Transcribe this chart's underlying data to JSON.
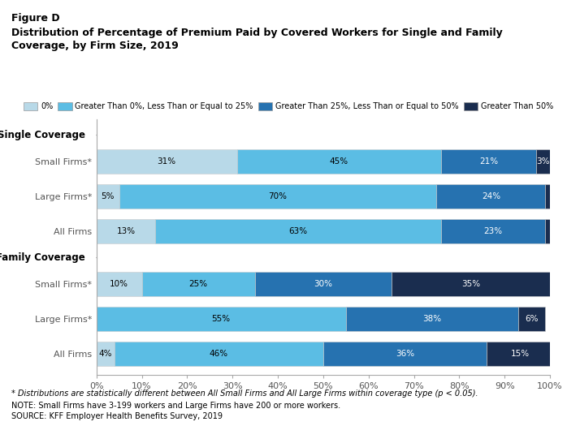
{
  "title_line1": "Figure D",
  "title_line2": "Distribution of Percentage of Premium Paid by Covered Workers for Single and Family",
  "title_line3": "Coverage, by Firm Size, 2019",
  "legend_labels": [
    "0%",
    "Greater Than 0%, Less Than or Equal to 25%",
    "Greater Than 25%, Less Than or Equal to 50%",
    "Greater Than 50%"
  ],
  "colors": [
    "#b8d9e8",
    "#5bbde4",
    "#2672b0",
    "#1a2d4f"
  ],
  "section_labels": [
    "Single Coverage",
    "Family Coverage"
  ],
  "categories": [
    "Small Firms*",
    "Large Firms*",
    "All Firms",
    "Small Firms*",
    "Large Firms*",
    "All Firms"
  ],
  "data": [
    [
      31,
      45,
      21,
      3
    ],
    [
      5,
      70,
      24,
      1
    ],
    [
      13,
      63,
      23,
      1
    ],
    [
      10,
      25,
      30,
      35
    ],
    [
      0,
      55,
      38,
      6
    ],
    [
      4,
      46,
      36,
      15
    ]
  ],
  "bar_labels": [
    [
      "31%",
      "45%",
      "21%",
      "3%"
    ],
    [
      "5%",
      "70%",
      "24%",
      ""
    ],
    [
      "13%",
      "63%",
      "23%",
      ""
    ],
    [
      "10%",
      "25%",
      "30%",
      "35%"
    ],
    [
      "",
      "55%",
      "38%",
      "6%"
    ],
    [
      "4%",
      "46%",
      "36%",
      "15%"
    ]
  ],
  "label_colors": [
    [
      "black",
      "black",
      "white",
      "white"
    ],
    [
      "black",
      "black",
      "white",
      "white"
    ],
    [
      "black",
      "black",
      "white",
      "white"
    ],
    [
      "black",
      "black",
      "white",
      "white"
    ],
    [
      "black",
      "black",
      "white",
      "white"
    ],
    [
      "black",
      "black",
      "white",
      "white"
    ]
  ],
  "footnote1": "* Distributions are statistically different between All Small Firms and All Large Firms within coverage type (p < 0.05).",
  "footnote2": "NOTE: Small Firms have 3-199 workers and Large Firms have 200 or more workers.",
  "footnote3": "SOURCE: KFF Employer Health Benefits Survey, 2019",
  "background_color": "#ffffff"
}
